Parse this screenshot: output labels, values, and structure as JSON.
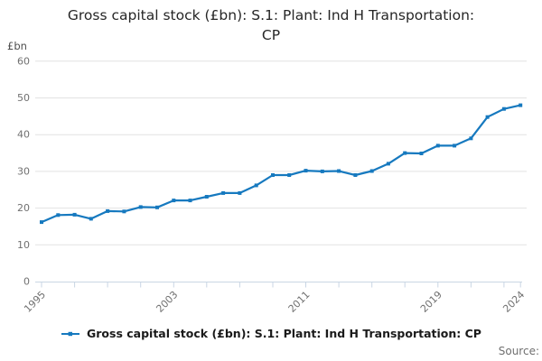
{
  "header": {
    "title_lines": [
      "Gross capital stock (£bn): S.1: Plant: Ind H Transportation:",
      "CP"
    ],
    "y_unit_label": "£bn"
  },
  "legend": {
    "label": "Gross capital stock (£bn): S.1: Plant: Ind H Transportation: CP"
  },
  "footer": {
    "source_label": "Source:"
  },
  "colors": {
    "line": "#1679bf",
    "grid": "#e2e2e2",
    "axis": "#c9d6e4",
    "tick_text": "#707070",
    "title_text": "#262626",
    "unit_text": "#4d4d4d",
    "legend_text": "#1a1a1a",
    "source_text": "#6f6f6f",
    "background": "#ffffff"
  },
  "chart_data": {
    "type": "line",
    "title": "Gross capital stock (£bn): S.1: Plant: Ind H Transportation: CP",
    "xlabel": "",
    "ylabel": "£bn",
    "x": [
      1995,
      1996,
      1997,
      1998,
      1999,
      2000,
      2001,
      2002,
      2003,
      2004,
      2005,
      2006,
      2007,
      2008,
      2009,
      2010,
      2011,
      2012,
      2013,
      2014,
      2015,
      2016,
      2017,
      2018,
      2019,
      2020,
      2021,
      2022,
      2023,
      2024
    ],
    "series": [
      {
        "name": "Gross capital stock (£bn): S.1: Plant: Ind H Transportation: CP",
        "values": [
          16.2,
          18.1,
          18.2,
          17.1,
          19.2,
          19.1,
          20.3,
          20.2,
          22.1,
          22.1,
          23.1,
          24.1,
          24.1,
          26.2,
          29,
          29,
          30.2,
          30,
          30.1,
          29,
          30.1,
          32.1,
          35,
          34.9,
          37,
          37,
          39,
          44.8,
          47,
          48
        ]
      }
    ],
    "ylim": [
      0,
      60
    ],
    "yticks": [
      0,
      10,
      20,
      30,
      40,
      50,
      60
    ],
    "xticks_labeled": [
      1995,
      2003,
      2011,
      2019,
      2024
    ],
    "xtick_interval": 2,
    "grid": "horizontal",
    "legend_position": "bottom",
    "marker": "square"
  }
}
